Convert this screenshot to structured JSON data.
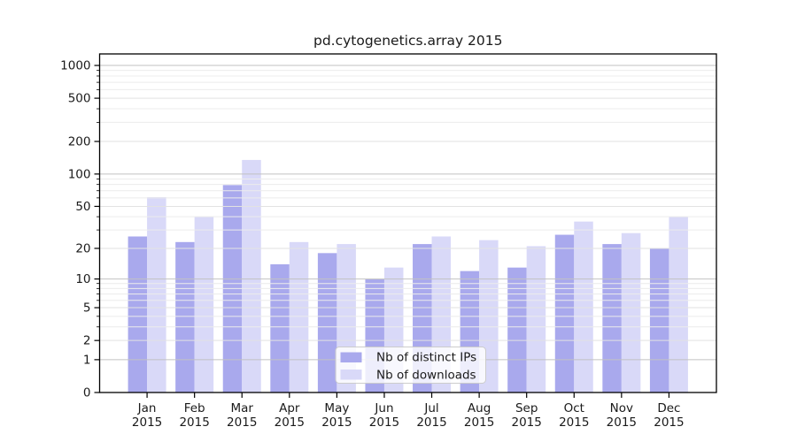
{
  "chart_data": {
    "type": "bar",
    "title": "pd.cytogenetics.array 2015",
    "categories": [
      "Jan",
      "Feb",
      "Mar",
      "Apr",
      "May",
      "Jun",
      "Jul",
      "Aug",
      "Sep",
      "Oct",
      "Nov",
      "Dec"
    ],
    "x_tick_second_line": "2015",
    "series": [
      {
        "name": "Nb of distinct IPs",
        "color": "#a9a9ed",
        "values": [
          26,
          23,
          79,
          14,
          18,
          10,
          22,
          12,
          13,
          27,
          22,
          20
        ]
      },
      {
        "name": "Nb of downloads",
        "color": "#d9d9f8",
        "values": [
          61,
          40,
          135,
          23,
          22,
          13,
          26,
          24,
          21,
          36,
          28,
          40
        ]
      }
    ],
    "y_axis": {
      "scale": "log1p",
      "ticks": [
        0,
        1,
        2,
        5,
        10,
        20,
        50,
        100,
        200,
        500,
        1000
      ],
      "decade_ticks": [
        1,
        10,
        100,
        1000
      ],
      "minor_ticks": [
        3,
        4,
        6,
        7,
        8,
        9,
        30,
        40,
        60,
        70,
        80,
        90,
        300,
        400,
        600,
        700,
        800,
        900
      ],
      "ylim": [
        0,
        1276
      ]
    },
    "legend": {
      "position": "bottom-center",
      "entries": [
        "Nb of distinct IPs",
        "Nb of downloads"
      ]
    },
    "grid": true,
    "grid_over_bars": true,
    "colors": {
      "bar_ips": "#a9a9ed",
      "bar_downloads": "#d9d9f8",
      "grid_major": "#c2c2c2",
      "grid_mid": "#e2e2e2",
      "grid_minor": "#ececec",
      "axis": "#000000",
      "text": "#1a1a1a",
      "legend_bg": "rgba(255,255,255,0.8)",
      "legend_border": "#cccccc"
    }
  }
}
